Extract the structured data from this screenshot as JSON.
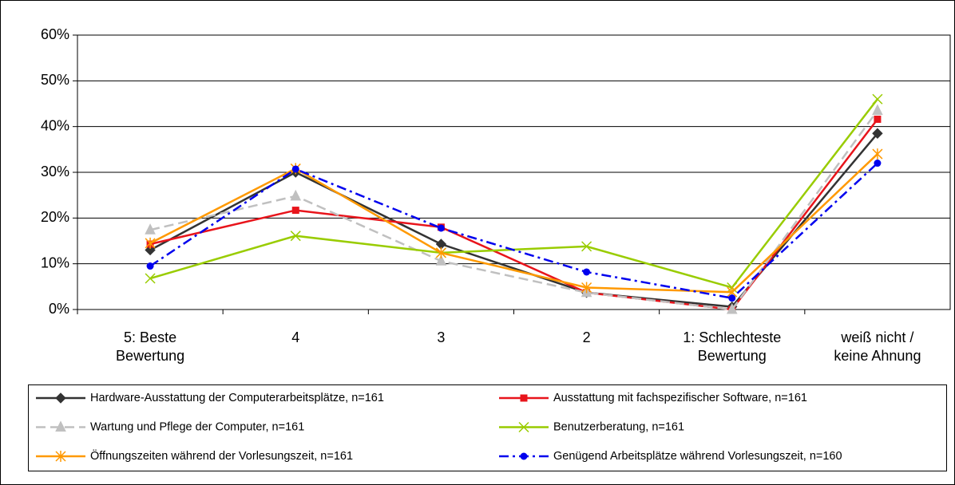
{
  "chart_data": {
    "type": "line",
    "categories": [
      "5: Beste\nBewertung",
      "4",
      "3",
      "2",
      "1: Schlechteste\nBewertung",
      "weiß nicht /\nkeine Ahnung"
    ],
    "ylim": [
      0,
      60
    ],
    "yticks": [
      {
        "value": 0,
        "label": "0%"
      },
      {
        "value": 10,
        "label": "10%"
      },
      {
        "value": 20,
        "label": "20%"
      },
      {
        "value": 30,
        "label": "30%"
      },
      {
        "value": 40,
        "label": "40%"
      },
      {
        "value": 50,
        "label": "50%"
      },
      {
        "value": 60,
        "label": "60%"
      }
    ],
    "grid": true,
    "series": [
      {
        "name": "Hardware-Ausstattung der Computerarbeitsplätze, n=161",
        "color": "#333333",
        "marker": "diamond",
        "dash": "solid",
        "values": [
          13,
          30,
          14.3,
          3.7,
          0.6,
          38.5
        ]
      },
      {
        "name": "Ausstattung mit fachspezifischer Software, n=161",
        "color": "#e8141b",
        "marker": "square",
        "dash": "solid",
        "values": [
          14.3,
          21.7,
          18,
          3.7,
          0,
          41.6
        ]
      },
      {
        "name": "Wartung und Pflege der Computer, n=161",
        "color": "#c0c0c0",
        "marker": "triangle",
        "dash": "dash",
        "values": [
          17.4,
          24.8,
          10.6,
          3.7,
          0,
          43.5
        ]
      },
      {
        "name": "Benutzerberatung, n=161",
        "color": "#99cc00",
        "marker": "x",
        "dash": "solid",
        "values": [
          6.8,
          16.1,
          12.4,
          13.8,
          4.8,
          46
        ]
      },
      {
        "name": "Öffnungszeiten während der Vorlesungszeit, n=161",
        "color": "#ff9900",
        "marker": "asterisk",
        "dash": "solid",
        "values": [
          14.5,
          30.8,
          12.4,
          4.8,
          3.8,
          34
        ]
      },
      {
        "name": "Genügend Arbeitsplätze während Vorlesungszeit, n=160",
        "color": "#0000ee",
        "marker": "circle",
        "dash": "dashdot",
        "values": [
          9.5,
          30.7,
          17.8,
          8.2,
          2.5,
          32
        ]
      }
    ]
  }
}
